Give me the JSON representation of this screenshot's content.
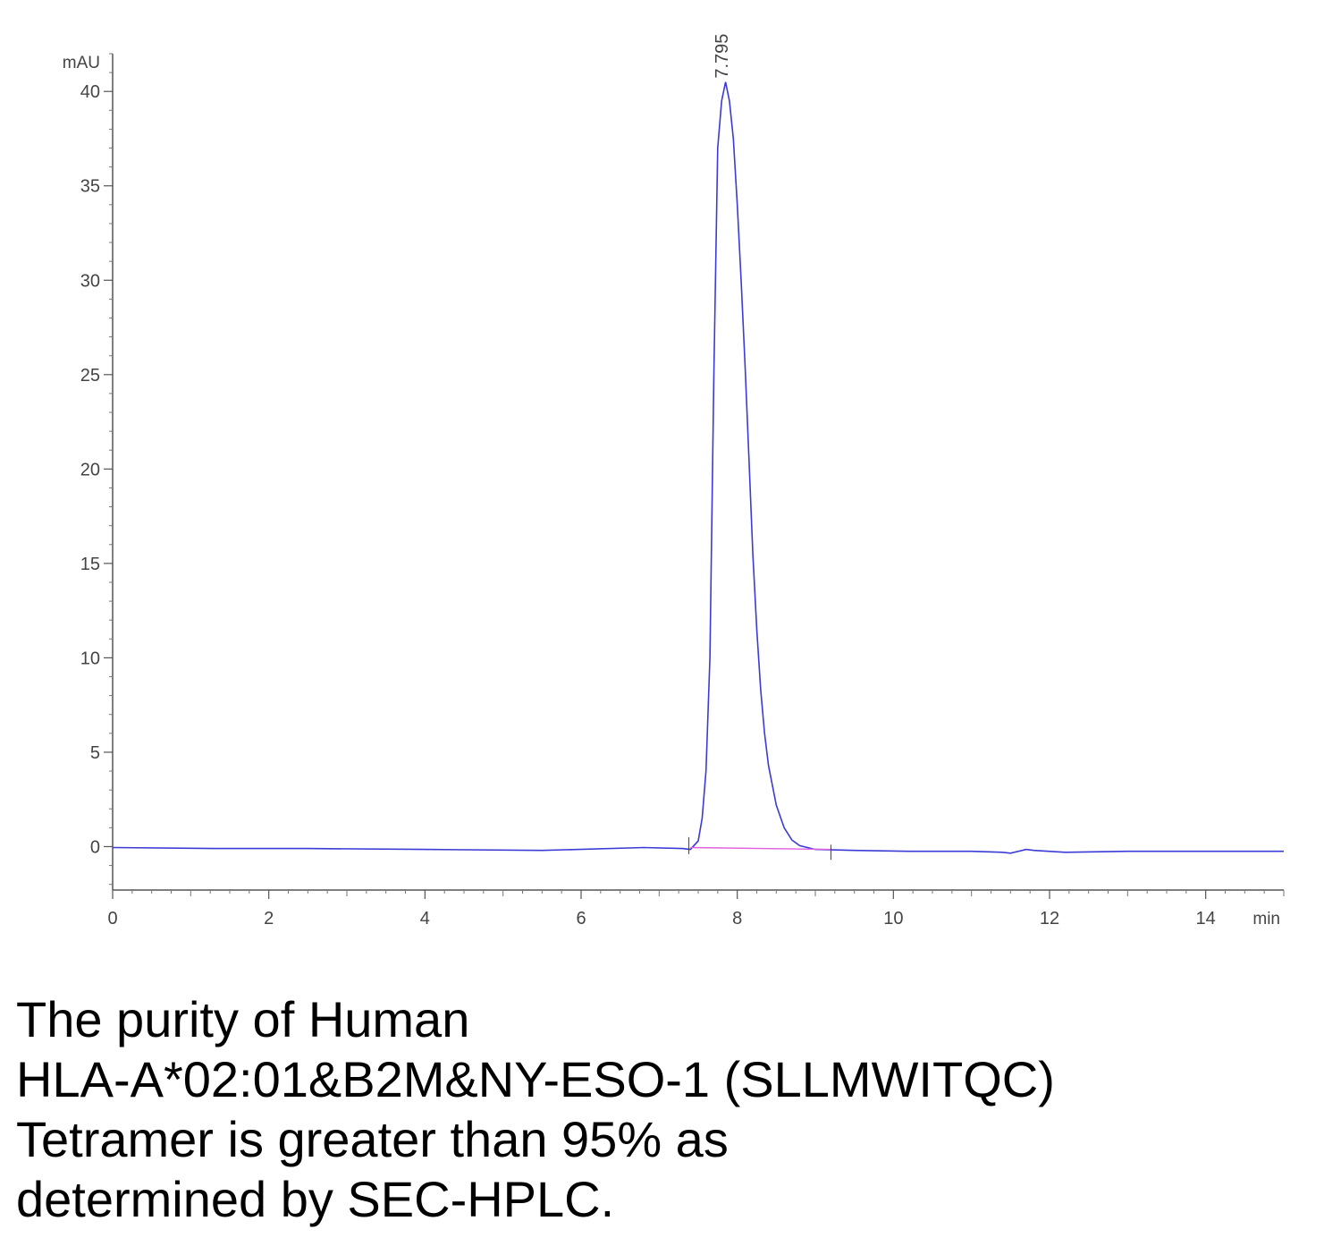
{
  "chart_data": {
    "type": "line",
    "xlabel": "min",
    "ylabel": "mAU",
    "xlim": [
      0,
      15
    ],
    "ylim": [
      -2.3,
      42
    ],
    "x_ticks": [
      0,
      2,
      4,
      6,
      8,
      10,
      12,
      14
    ],
    "y_ticks": [
      0,
      5,
      10,
      15,
      20,
      25,
      30,
      35,
      40
    ],
    "peak_label": "7.795",
    "series": [
      {
        "color": "#3b3bd6",
        "x": [
          0,
          1.3,
          2.5,
          4.0,
          5.5,
          6.8,
          7.3,
          7.4,
          7.5,
          7.55,
          7.6,
          7.65,
          7.7,
          7.75,
          7.8,
          7.85,
          7.9,
          7.95,
          8.0,
          8.05,
          8.1,
          8.15,
          8.2,
          8.25,
          8.3,
          8.35,
          8.4,
          8.5,
          8.6,
          8.7,
          8.8,
          9.0,
          9.5,
          10.2,
          11.0,
          11.4,
          11.5,
          11.7,
          11.8,
          12.2,
          13.0,
          14.0,
          15.0
        ],
        "y": [
          -0.05,
          -0.1,
          -0.1,
          -0.15,
          -0.2,
          -0.05,
          -0.1,
          -0.15,
          0.3,
          1.5,
          4.0,
          10.0,
          25.0,
          37.0,
          39.5,
          40.5,
          39.5,
          37.5,
          34.0,
          30.0,
          25.5,
          20.5,
          15.5,
          11.5,
          8.3,
          6.0,
          4.3,
          2.2,
          1.0,
          0.35,
          0.05,
          -0.15,
          -0.2,
          -0.25,
          -0.25,
          -0.3,
          -0.35,
          -0.15,
          -0.2,
          -0.3,
          -0.25,
          -0.25,
          -0.25
        ]
      },
      {
        "color": "#e060e0",
        "x": [
          7.4,
          9.2
        ],
        "y": [
          -0.05,
          -0.15
        ]
      }
    ]
  },
  "caption": {
    "line1": "The purity of Human",
    "line2": "HLA-A*02:01&B2M&NY-ESO-1 (SLLMWITQC)",
    "line3": "Tetramer is greater than 95% as",
    "line4": "determined by SEC-HPLC."
  }
}
